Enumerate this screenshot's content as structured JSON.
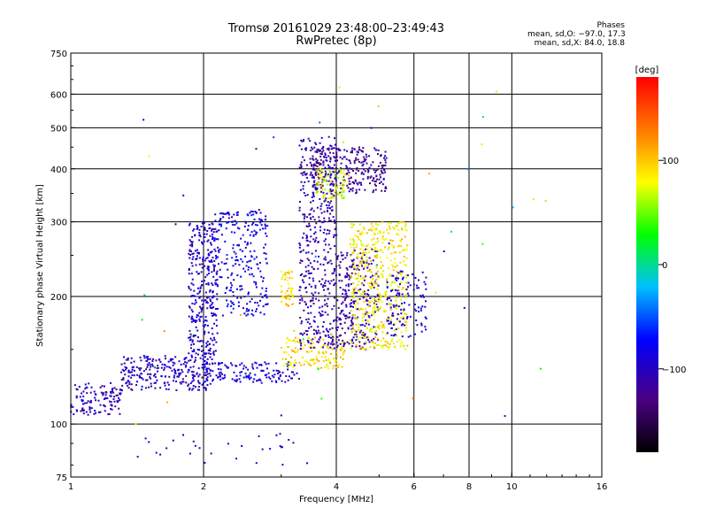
{
  "header": {
    "title_line1": "Tromsø 20161029 23:48:00–23:49:43",
    "title_line2": "RwPretec (8p)"
  },
  "stats": {
    "heading": "Phases",
    "line_o": "mean, sd,O: −97.0, 17.3",
    "line_x": "mean, sd,X:  84.0, 18.8"
  },
  "colorbar": {
    "unit_label": "[deg]",
    "range": [
      -180,
      180
    ],
    "ticks": [
      {
        "value": 100,
        "label": "100"
      },
      {
        "value": 0,
        "label": "0"
      },
      {
        "value": -100,
        "label": "−100"
      }
    ]
  },
  "chart_data": {
    "type": "scatter",
    "xlabel": "Frequency [MHz]",
    "ylabel": "Stationary phase Virtual Height [km]",
    "xscale": "log",
    "yscale": "log",
    "xlim": [
      1,
      16
    ],
    "ylim": [
      75,
      750
    ],
    "x_ticks": [
      {
        "value": 1,
        "label": "1"
      },
      {
        "value": 2,
        "label": "2"
      },
      {
        "value": 4,
        "label": "4"
      },
      {
        "value": 6,
        "label": "6"
      },
      {
        "value": 8,
        "label": "8"
      },
      {
        "value": 10,
        "label": "10"
      },
      {
        "value": 16,
        "label": "16"
      }
    ],
    "x_gridlines": [
      2,
      4,
      6,
      8,
      10
    ],
    "y_ticks": [
      {
        "value": 75,
        "label": "75"
      },
      {
        "value": 100,
        "label": "100"
      },
      {
        "value": 200,
        "label": "200"
      },
      {
        "value": 300,
        "label": "300"
      },
      {
        "value": 400,
        "label": "400"
      },
      {
        "value": 500,
        "label": "500"
      },
      {
        "value": 600,
        "label": "600"
      },
      {
        "value": 750,
        "label": "750"
      }
    ],
    "y_gridlines": [
      100,
      200,
      300,
      400,
      500,
      600
    ],
    "grid": true,
    "color_dimension": "phase [deg]",
    "clusters": [
      {
        "description": "O-mode E/F trace low band",
        "x": [
          1.0,
          1.3
        ],
        "y": [
          105,
          125
        ],
        "phase": -105,
        "n": 120
      },
      {
        "description": "O-mode ascending trace",
        "x": [
          1.3,
          2.1
        ],
        "y": [
          120,
          145
        ],
        "phase": -100,
        "n": 260
      },
      {
        "description": "O-mode F1 rise",
        "x": [
          1.85,
          2.15
        ],
        "y": [
          145,
          300
        ],
        "phase": -98,
        "n": 320
      },
      {
        "description": "O-mode F1 branch",
        "x": [
          2.1,
          2.8
        ],
        "y": [
          180,
          320
        ],
        "phase": -85,
        "n": 260
      },
      {
        "description": "O-mode base trace",
        "x": [
          2.0,
          3.3
        ],
        "y": [
          125,
          140
        ],
        "phase": -92,
        "n": 140
      },
      {
        "description": "X-mode low band",
        "x": [
          3.0,
          4.2
        ],
        "y": [
          135,
          160
        ],
        "phase": 90,
        "n": 140
      },
      {
        "description": "O-mode F2 column",
        "x": [
          3.3,
          4.0
        ],
        "y": [
          150,
          480
        ],
        "phase": -110,
        "n": 420
      },
      {
        "description": "O-mode F2 upper",
        "x": [
          3.5,
          5.2
        ],
        "y": [
          350,
          450
        ],
        "phase": -120,
        "n": 300
      },
      {
        "description": "X-mode F2 mid",
        "x": [
          3.6,
          4.2
        ],
        "y": [
          340,
          400
        ],
        "phase": 75,
        "n": 90
      },
      {
        "description": "O-mode F2 right",
        "x": [
          4.0,
          5.0
        ],
        "y": [
          150,
          260
        ],
        "phase": -110,
        "n": 260
      },
      {
        "description": "X-mode F2 right",
        "x": [
          4.3,
          5.8
        ],
        "y": [
          150,
          300
        ],
        "phase": 85,
        "n": 480
      },
      {
        "description": "X-mode scatter",
        "x": [
          3.0,
          3.2
        ],
        "y": [
          190,
          230
        ],
        "phase": 95,
        "n": 50
      },
      {
        "description": "O-mode F2 far right",
        "x": [
          5.2,
          6.4
        ],
        "y": [
          160,
          230
        ],
        "phase": -95,
        "n": 120
      },
      {
        "description": "low stray points",
        "x": [
          1.4,
          3.6
        ],
        "y": [
          80,
          95
        ],
        "phase": -100,
        "n": 30
      },
      {
        "description": "high stray points",
        "x": [
          1.4,
          12.5
        ],
        "y": [
          95,
          650
        ],
        "phase": 0,
        "n": 50
      }
    ]
  }
}
